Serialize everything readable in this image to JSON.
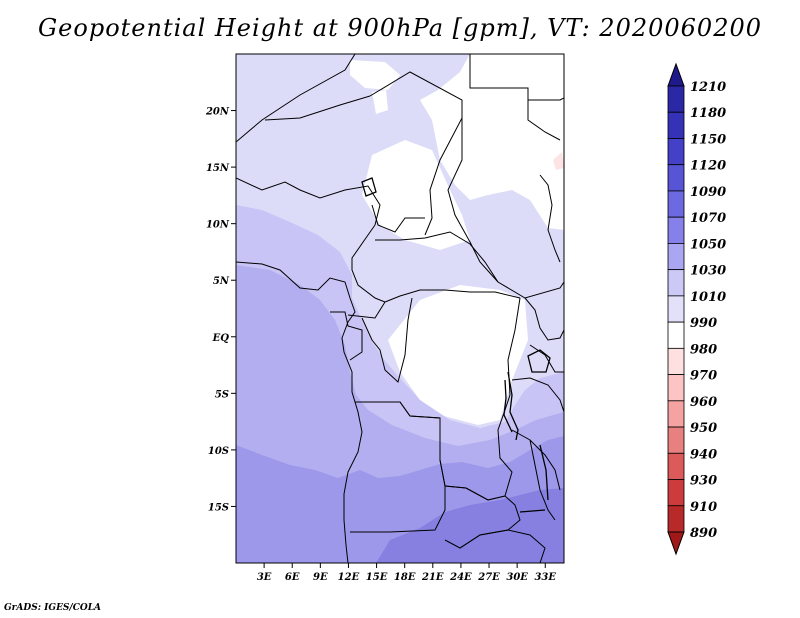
{
  "title": "Geopotential Height at 900hPa [gpm], VT: 2020060200",
  "credit": "GrADS: IGES/COLA",
  "map": {
    "lon_range": [
      0,
      35
    ],
    "lat_range": [
      -20,
      25
    ],
    "lat_ticks": [
      {
        "label": "20N",
        "lat": 20
      },
      {
        "label": "15N",
        "lat": 15
      },
      {
        "label": "10N",
        "lat": 10
      },
      {
        "label": "5N",
        "lat": 5
      },
      {
        "label": "EQ",
        "lat": 0
      },
      {
        "label": "5S",
        "lat": -5
      },
      {
        "label": "10S",
        "lat": -10
      },
      {
        "label": "15S",
        "lat": -15
      }
    ],
    "lon_ticks": [
      {
        "label": "3E",
        "lon": 3
      },
      {
        "label": "6E",
        "lon": 6
      },
      {
        "label": "9E",
        "lon": 9
      },
      {
        "label": "12E",
        "lon": 12
      },
      {
        "label": "15E",
        "lon": 15
      },
      {
        "label": "18E",
        "lon": 18
      },
      {
        "label": "21E",
        "lon": 21
      },
      {
        "label": "24E",
        "lon": 24
      },
      {
        "label": "27E",
        "lon": 27
      },
      {
        "label": "30E",
        "lon": 30
      },
      {
        "label": "33E",
        "lon": 33
      }
    ]
  },
  "colorbar": {
    "labels": [
      "1210",
      "1180",
      "1150",
      "1120",
      "1090",
      "1070",
      "1050",
      "1030",
      "1010",
      "990",
      "980",
      "970",
      "960",
      "950",
      "940",
      "930",
      "910",
      "890"
    ],
    "colors": [
      "#1e1a8c",
      "#2b28a6",
      "#3532b8",
      "#4440c8",
      "#5854d6",
      "#6d69e0",
      "#8681ea",
      "#aaa6f2",
      "#ccc9f6",
      "#e3e1fa",
      "#ffffff",
      "#ffe0e0",
      "#fcc4c4",
      "#f4a2a2",
      "#e88080",
      "#dc5a5a",
      "#cc3c3c",
      "#b82a2a",
      "#a01818"
    ]
  },
  "contours": {
    "colors": {
      "band_1010_1030": "#dcdcf9",
      "band_1030_1050": "#c8c4f5",
      "band_1050_1070": "#b2aef0",
      "band_1070_1090": "#9e98ea",
      "band_1090_1120": "#8780e0",
      "below_1010": "#ffffff",
      "border": "#000000"
    }
  }
}
